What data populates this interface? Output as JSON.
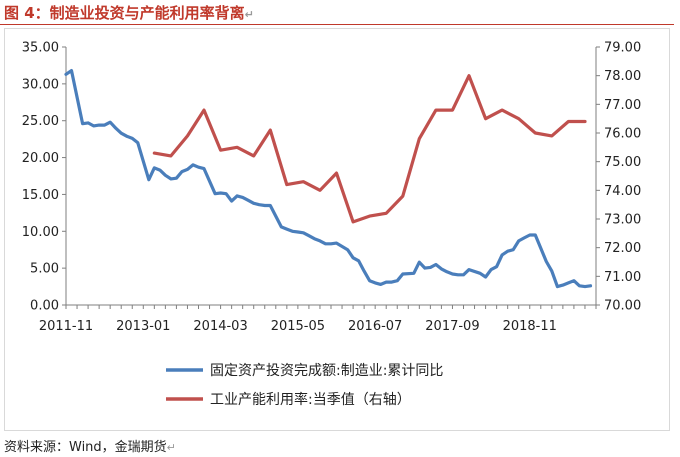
{
  "figure": {
    "title": "图 4：制造业投资与产能利用率背离",
    "source": "资料来源：Wind，金瑞期货"
  },
  "chart_data": {
    "type": "line",
    "title": "",
    "x_tick_labels": [
      "2011-11",
      "2013-01",
      "2014-03",
      "2015-05",
      "2016-07",
      "2017-09",
      "2018-11"
    ],
    "y_left": {
      "min": 0,
      "max": 35,
      "step": 5,
      "tick_labels": [
        "0.00",
        "5.00",
        "10.00",
        "15.00",
        "20.00",
        "25.00",
        "30.00",
        "35.00"
      ]
    },
    "y_right": {
      "min": 70,
      "max": 79,
      "step": 1,
      "tick_labels": [
        "70.00",
        "71.00",
        "72.00",
        "73.00",
        "74.00",
        "75.00",
        "76.00",
        "77.00",
        "78.00",
        "79.00"
      ]
    },
    "grid": false,
    "legend_position": "bottom",
    "series": [
      {
        "name": "固定资产投资完成额:制造业:累计同比",
        "axis": "left",
        "color": "#4a7ebb",
        "points": [
          [
            "2011-11",
            31.3
          ],
          [
            "2011-12",
            31.8
          ],
          [
            "2012-02",
            24.6
          ],
          [
            "2012-03",
            24.7
          ],
          [
            "2012-04",
            24.3
          ],
          [
            "2012-05",
            24.4
          ],
          [
            "2012-06",
            24.4
          ],
          [
            "2012-07",
            24.8
          ],
          [
            "2012-08",
            24.0
          ],
          [
            "2012-09",
            23.3
          ],
          [
            "2012-10",
            22.9
          ],
          [
            "2012-11",
            22.6
          ],
          [
            "2012-12",
            22.0
          ],
          [
            "2013-02",
            17.0
          ],
          [
            "2013-03",
            18.6
          ],
          [
            "2013-04",
            18.3
          ],
          [
            "2013-05",
            17.6
          ],
          [
            "2013-06",
            17.1
          ],
          [
            "2013-07",
            17.2
          ],
          [
            "2013-08",
            18.1
          ],
          [
            "2013-09",
            18.4
          ],
          [
            "2013-10",
            19.0
          ],
          [
            "2013-11",
            18.7
          ],
          [
            "2013-12",
            18.5
          ],
          [
            "2014-02",
            15.1
          ],
          [
            "2014-03",
            15.2
          ],
          [
            "2014-04",
            15.1
          ],
          [
            "2014-05",
            14.1
          ],
          [
            "2014-06",
            14.8
          ],
          [
            "2014-07",
            14.6
          ],
          [
            "2014-08",
            14.2
          ],
          [
            "2014-09",
            13.8
          ],
          [
            "2014-10",
            13.6
          ],
          [
            "2014-11",
            13.5
          ],
          [
            "2014-12",
            13.5
          ],
          [
            "2015-02",
            10.6
          ],
          [
            "2015-03",
            10.3
          ],
          [
            "2015-04",
            10.0
          ],
          [
            "2015-05",
            9.9
          ],
          [
            "2015-06",
            9.8
          ],
          [
            "2015-07",
            9.4
          ],
          [
            "2015-08",
            9.0
          ],
          [
            "2015-09",
            8.7
          ],
          [
            "2015-10",
            8.3
          ],
          [
            "2015-11",
            8.3
          ],
          [
            "2015-12",
            8.4
          ],
          [
            "2016-02",
            7.5
          ],
          [
            "2016-03",
            6.4
          ],
          [
            "2016-04",
            6.0
          ],
          [
            "2016-05",
            4.6
          ],
          [
            "2016-06",
            3.3
          ],
          [
            "2016-07",
            3.0
          ],
          [
            "2016-08",
            2.8
          ],
          [
            "2016-09",
            3.1
          ],
          [
            "2016-10",
            3.1
          ],
          [
            "2016-11",
            3.3
          ],
          [
            "2016-12",
            4.2
          ],
          [
            "2017-02",
            4.3
          ],
          [
            "2017-03",
            5.8
          ],
          [
            "2017-04",
            5.0
          ],
          [
            "2017-05",
            5.1
          ],
          [
            "2017-06",
            5.5
          ],
          [
            "2017-07",
            4.9
          ],
          [
            "2017-08",
            4.5
          ],
          [
            "2017-09",
            4.2
          ],
          [
            "2017-10",
            4.1
          ],
          [
            "2017-11",
            4.1
          ],
          [
            "2017-12",
            4.8
          ],
          [
            "2018-02",
            4.3
          ],
          [
            "2018-03",
            3.8
          ],
          [
            "2018-04",
            4.8
          ],
          [
            "2018-05",
            5.2
          ],
          [
            "2018-06",
            6.8
          ],
          [
            "2018-07",
            7.3
          ],
          [
            "2018-08",
            7.5
          ],
          [
            "2018-09",
            8.7
          ],
          [
            "2018-10",
            9.1
          ],
          [
            "2018-11",
            9.5
          ],
          [
            "2018-12",
            9.5
          ],
          [
            "2019-02",
            5.9
          ],
          [
            "2019-03",
            4.6
          ],
          [
            "2019-04",
            2.5
          ],
          [
            "2019-05",
            2.7
          ],
          [
            "2019-06",
            3.0
          ],
          [
            "2019-07",
            3.3
          ],
          [
            "2019-08",
            2.6
          ],
          [
            "2019-09",
            2.5
          ],
          [
            "2019-10",
            2.6
          ]
        ]
      },
      {
        "name": "工业产能利用率:当季值（右轴）",
        "axis": "right",
        "color": "#c0504d",
        "points": [
          [
            "2013-03",
            75.3
          ],
          [
            "2013-06",
            75.2
          ],
          [
            "2013-09",
            75.9
          ],
          [
            "2013-12",
            76.8
          ],
          [
            "2014-03",
            75.4
          ],
          [
            "2014-06",
            75.5
          ],
          [
            "2014-09",
            75.2
          ],
          [
            "2014-12",
            76.1
          ],
          [
            "2015-03",
            74.2
          ],
          [
            "2015-06",
            74.3
          ],
          [
            "2015-09",
            74.0
          ],
          [
            "2015-12",
            74.6
          ],
          [
            "2016-03",
            72.9
          ],
          [
            "2016-06",
            73.1
          ],
          [
            "2016-09",
            73.2
          ],
          [
            "2016-12",
            73.8
          ],
          [
            "2017-03",
            75.8
          ],
          [
            "2017-06",
            76.8
          ],
          [
            "2017-09",
            76.8
          ],
          [
            "2017-12",
            78.0
          ],
          [
            "2018-03",
            76.5
          ],
          [
            "2018-06",
            76.8
          ],
          [
            "2018-09",
            76.5
          ],
          [
            "2018-12",
            76.0
          ],
          [
            "2019-03",
            75.9
          ],
          [
            "2019-06",
            76.4
          ],
          [
            "2019-09",
            76.4
          ]
        ]
      }
    ]
  }
}
